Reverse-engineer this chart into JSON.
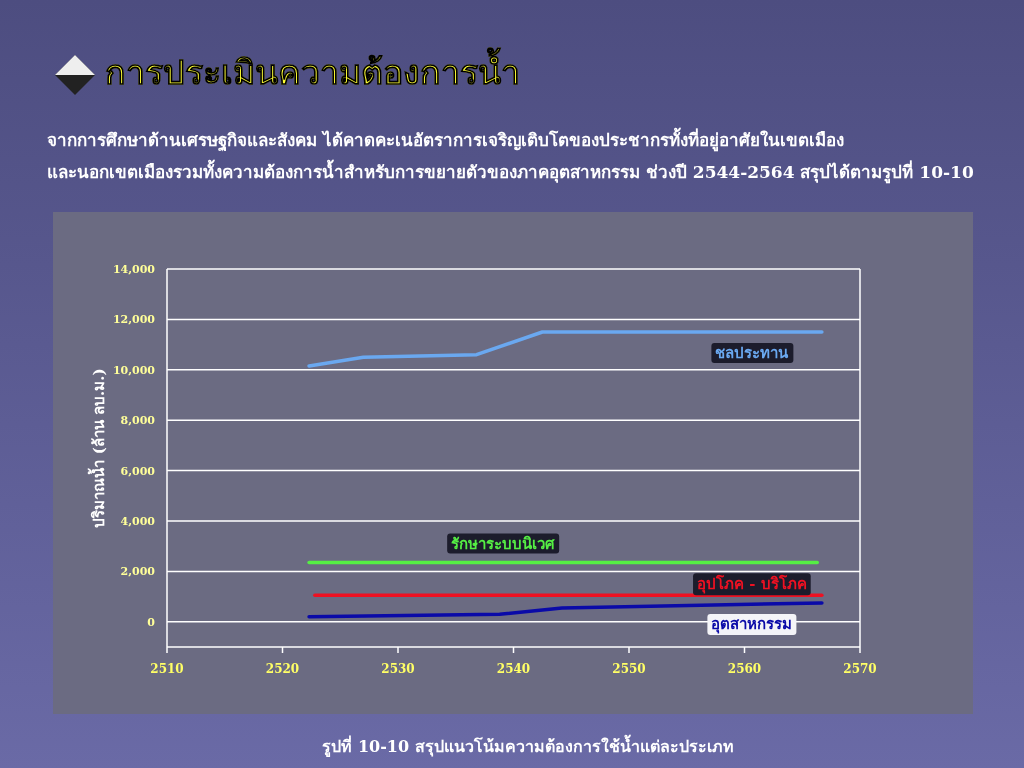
{
  "chart_data": {
    "type": "line",
    "title": "การประเมินความต้องการน้ำ",
    "subtitle": "จากการศึกษาด้านเศรษฐกิจและสังคม ได้คาดคะเนอัตราการเจริญเติบโตของประชากรทั้งที่อยู่อาศัยในเขตเมือง และนอกเขตเมืองรวมทั้งความต้องการน้ำสำหรับการขยายตัวของภาคอุตสาหกรรม ช่วงปี 2544-2564 สรุปได้ตามรูปที่ 10-10",
    "ylabel": "ปริมาณน้ำ  (ล้าน ลบ.ม.)",
    "annotations": [
      "รูปที่ 10-10 สรุปแนวโน้มความต้องการใช้น้ำแต่ละประเภท"
    ],
    "series": [
      {
        "name": "ชลประทาน",
        "color": "#6aa8f0",
        "x": [
          2522.3,
          2527,
          2536.8,
          2542.5,
          2566.7
        ],
        "values": [
          10150,
          10500,
          10600,
          11500,
          11500
        ]
      },
      {
        "name": "รักษาระบบนิเวศ",
        "color": "#55ee44",
        "x": [
          2522.3,
          2566.3
        ],
        "values": [
          2350,
          2350
        ]
      },
      {
        "name": "อุปโภค - บริโภค",
        "color": "#ee1122",
        "x": [
          2522.8,
          2566.7
        ],
        "values": [
          1050,
          1050
        ]
      },
      {
        "name": "อุตสาหกรรม",
        "color": "#0a0aa8",
        "x": [
          2522.3,
          2538.8,
          2544.2,
          2566.7
        ],
        "values": [
          200,
          300,
          550,
          750
        ]
      }
    ],
    "xlim": [
      2510,
      2570
    ],
    "xticks": [
      2510,
      2520,
      2530,
      2540,
      2550,
      2560,
      2570
    ],
    "ylim": [
      -1000,
      14000
    ],
    "yticks": [
      {
        "value": 0,
        "label": "0"
      },
      {
        "value": 2000,
        "label": "2,000"
      },
      {
        "value": 4000,
        "label": "4,000"
      },
      {
        "value": 6000,
        "label": "6,000"
      },
      {
        "value": 8000,
        "label": "8,000"
      },
      {
        "value": 10000,
        "label": "10,000"
      },
      {
        "value": 12000,
        "label": "12,000"
      },
      {
        "value": 14000,
        "label": "14,000"
      }
    ],
    "grid": "y"
  }
}
